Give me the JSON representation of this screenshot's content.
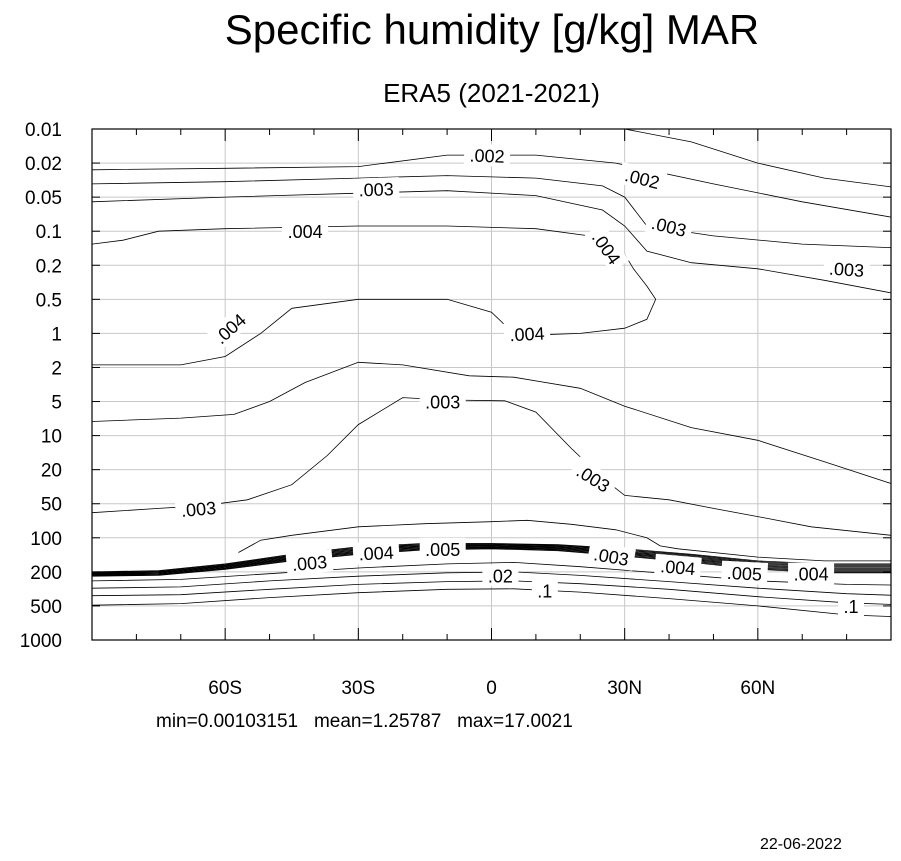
{
  "chart_data": {
    "type": "contour",
    "title": "Specific humidity [g/kg] MAR",
    "subtitle": "ERA5 (2021-2021)",
    "x_ticks": [
      {
        "value": -60,
        "label": "60S"
      },
      {
        "value": -30,
        "label": "30S"
      },
      {
        "value": 0,
        "label": "0"
      },
      {
        "value": 30,
        "label": "30N"
      },
      {
        "value": 60,
        "label": "60N"
      }
    ],
    "xlim": [
      -90,
      90
    ],
    "y_ticks": [
      "0.01",
      "0.02",
      "0.05",
      "0.1",
      "0.2",
      "0.5",
      "1",
      "2",
      "5",
      "10",
      "20",
      "50",
      "100",
      "200",
      "500",
      "1000"
    ],
    "y_scale": "log",
    "y_reversed": true,
    "grid": true,
    "contour_labels": [
      {
        "text": ".002",
        "lat": -1,
        "p": 0.017,
        "angle": 2
      },
      {
        "text": ".002",
        "lat": 34,
        "p": 0.03,
        "angle": 14
      },
      {
        "text": ".003",
        "lat": -26,
        "p": 0.04,
        "angle": -2
      },
      {
        "text": ".003",
        "lat": 40,
        "p": 0.09,
        "angle": 14
      },
      {
        "text": ".003",
        "lat": 80,
        "p": 0.22,
        "angle": 4
      },
      {
        "text": ".004",
        "lat": -42,
        "p": 0.1,
        "angle": 0
      },
      {
        "text": ".004",
        "lat": 26,
        "p": 0.14,
        "angle": 55
      },
      {
        "text": ".004",
        "lat": -59,
        "p": 0.9,
        "angle": -42
      },
      {
        "text": ".004",
        "lat": 8,
        "p": 1.0,
        "angle": -3
      },
      {
        "text": ".003",
        "lat": -11,
        "p": 5,
        "angle": 0
      },
      {
        "text": ".003",
        "lat": 23,
        "p": 25,
        "angle": 32
      },
      {
        "text": ".003",
        "lat": -66,
        "p": 55,
        "angle": -5
      },
      {
        "text": ".003",
        "lat": -41,
        "p": 165,
        "angle": -5
      },
      {
        "text": ".004",
        "lat": -26,
        "p": 135,
        "angle": -3
      },
      {
        "text": ".005",
        "lat": -11,
        "p": 125,
        "angle": 0
      },
      {
        "text": ".02",
        "lat": 2,
        "p": 220,
        "angle": 0
      },
      {
        "text": ".1",
        "lat": 12,
        "p": 330,
        "angle": 0
      },
      {
        "text": ".003",
        "lat": 27,
        "p": 145,
        "angle": 10
      },
      {
        "text": ".004",
        "lat": 42,
        "p": 180,
        "angle": 5
      },
      {
        "text": ".005",
        "lat": 57,
        "p": 205,
        "angle": 3
      },
      {
        "text": ".004",
        "lat": 72,
        "p": 210,
        "angle": 0
      },
      {
        "text": ".1",
        "lat": 81,
        "p": 500,
        "angle": 0
      }
    ],
    "contours": [
      [
        [
          -90,
          0.024
        ],
        [
          -60,
          0.023
        ],
        [
          -30,
          0.022
        ],
        [
          -10,
          0.017
        ],
        [
          10,
          0.017
        ],
        [
          28,
          0.02
        ],
        [
          50,
          0.035
        ],
        [
          70,
          0.055
        ],
        [
          90,
          0.075
        ]
      ],
      [
        [
          30,
          0.01
        ],
        [
          45,
          0.013
        ],
        [
          60,
          0.02
        ],
        [
          75,
          0.03
        ],
        [
          90,
          0.038
        ]
      ],
      [
        [
          -90,
          0.035
        ],
        [
          -60,
          0.033
        ],
        [
          -30,
          0.03
        ],
        [
          -10,
          0.028
        ],
        [
          10,
          0.03
        ],
        [
          25,
          0.037
        ],
        [
          30,
          0.05
        ],
        [
          35,
          0.09
        ],
        [
          50,
          0.11
        ],
        [
          70,
          0.13
        ],
        [
          90,
          0.14
        ]
      ],
      [
        [
          -90,
          0.055
        ],
        [
          -60,
          0.05
        ],
        [
          -30,
          0.045
        ],
        [
          -10,
          0.042
        ],
        [
          10,
          0.048
        ],
        [
          25,
          0.065
        ],
        [
          30,
          0.09
        ],
        [
          35,
          0.15
        ],
        [
          45,
          0.19
        ],
        [
          60,
          0.22
        ],
        [
          75,
          0.3
        ],
        [
          90,
          0.42
        ]
      ],
      [
        [
          -90,
          0.13
        ],
        [
          -83,
          0.12
        ],
        [
          -75,
          0.1
        ],
        [
          -60,
          0.095
        ],
        [
          -30,
          0.09
        ],
        [
          -10,
          0.09
        ],
        [
          10,
          0.095
        ],
        [
          22,
          0.11
        ],
        [
          30,
          0.16
        ],
        [
          32,
          0.22
        ],
        [
          35,
          0.35
        ],
        [
          37,
          0.5
        ],
        [
          35,
          0.75
        ],
        [
          30,
          0.9
        ],
        [
          20,
          1.0
        ],
        [
          5,
          1.05
        ]
      ],
      [
        [
          -90,
          1.9
        ],
        [
          -70,
          1.9
        ],
        [
          -60,
          1.6
        ],
        [
          -52,
          1.0
        ],
        [
          -45,
          0.6
        ],
        [
          -30,
          0.5
        ],
        [
          -10,
          0.5
        ],
        [
          0,
          0.65
        ],
        [
          5,
          1.0
        ]
      ],
      [
        [
          -90,
          7.5
        ],
        [
          -70,
          7
        ],
        [
          -58,
          6.5
        ],
        [
          -50,
          5
        ],
        [
          -42,
          3
        ],
        [
          -30,
          1.8
        ],
        [
          -20,
          1.9
        ],
        [
          -5,
          2.5
        ],
        [
          5,
          2.6
        ],
        [
          20,
          3.5
        ],
        [
          30,
          5.5
        ],
        [
          45,
          8.5
        ],
        [
          60,
          11
        ],
        [
          75,
          17
        ],
        [
          90,
          29
        ]
      ],
      [
        [
          -90,
          60
        ],
        [
          -75,
          55
        ],
        [
          -65,
          52
        ],
        [
          -55,
          45
        ],
        [
          -45,
          30
        ],
        [
          -37,
          15
        ],
        [
          -30,
          8
        ],
        [
          -20,
          4.5
        ],
        [
          -10,
          4.8
        ],
        [
          3,
          4.9
        ],
        [
          10,
          6.2
        ],
        [
          18,
          13
        ],
        [
          25,
          25
        ],
        [
          30,
          40
        ],
        [
          40,
          45
        ],
        [
          50,
          55
        ],
        [
          60,
          65
        ],
        [
          72,
          80
        ],
        [
          90,
          95
        ]
      ],
      [
        [
          -57,
          135
        ],
        [
          -52,
          105
        ],
        [
          -45,
          95
        ],
        [
          -30,
          80
        ],
        [
          -15,
          75
        ],
        [
          0,
          72
        ],
        [
          8,
          70
        ],
        [
          18,
          76
        ],
        [
          28,
          85
        ],
        [
          35,
          100
        ],
        [
          38,
          118
        ],
        [
          42,
          125
        ],
        [
          60,
          148
        ],
        [
          75,
          160
        ],
        [
          90,
          160
        ]
      ]
    ],
    "tropopause_bundle": {
      "upper": [
        [
          -90,
          200
        ],
        [
          -75,
          195
        ],
        [
          -60,
          170
        ],
        [
          -45,
          140
        ],
        [
          -30,
          120
        ],
        [
          -15,
          112
        ],
        [
          0,
          112
        ],
        [
          15,
          115
        ],
        [
          30,
          125
        ],
        [
          45,
          140
        ],
        [
          60,
          160
        ],
        [
          75,
          170
        ],
        [
          90,
          170
        ]
      ],
      "lower": [
        [
          -90,
          225
        ],
        [
          -75,
          220
        ],
        [
          -60,
          190
        ],
        [
          -45,
          160
        ],
        [
          -30,
          140
        ],
        [
          -15,
          128
        ],
        [
          0,
          125
        ],
        [
          15,
          130
        ],
        [
          30,
          145
        ],
        [
          45,
          165
        ],
        [
          60,
          190
        ],
        [
          75,
          205
        ],
        [
          90,
          205
        ]
      ],
      "lines": 10
    },
    "lower_contours": [
      [
        [
          -90,
          255
        ],
        [
          -70,
          245
        ],
        [
          -50,
          210
        ],
        [
          -30,
          185
        ],
        [
          -10,
          170
        ],
        [
          5,
          165
        ],
        [
          20,
          180
        ],
        [
          40,
          210
        ],
        [
          60,
          255
        ],
        [
          80,
          280
        ],
        [
          90,
          285
        ]
      ],
      [
        [
          -90,
          310
        ],
        [
          -70,
          300
        ],
        [
          -50,
          255
        ],
        [
          -30,
          225
        ],
        [
          -10,
          205
        ],
        [
          5,
          200
        ],
        [
          20,
          220
        ],
        [
          40,
          260
        ],
        [
          60,
          310
        ],
        [
          80,
          360
        ],
        [
          90,
          375
        ]
      ],
      [
        [
          -90,
          380
        ],
        [
          -70,
          370
        ],
        [
          -50,
          320
        ],
        [
          -30,
          280
        ],
        [
          -10,
          260
        ],
        [
          5,
          255
        ],
        [
          20,
          275
        ],
        [
          40,
          320
        ],
        [
          60,
          390
        ],
        [
          80,
          460
        ],
        [
          90,
          480
        ]
      ],
      [
        [
          -90,
          490
        ],
        [
          -70,
          470
        ],
        [
          -50,
          400
        ],
        [
          -30,
          350
        ],
        [
          -10,
          320
        ],
        [
          5,
          315
        ],
        [
          20,
          345
        ],
        [
          40,
          410
        ],
        [
          60,
          500
        ],
        [
          80,
          600
        ],
        [
          90,
          620
        ]
      ]
    ]
  },
  "stats": {
    "min": "0.00103151",
    "mean": "1.25787",
    "max": "17.0021"
  },
  "date": "22-06-2022"
}
